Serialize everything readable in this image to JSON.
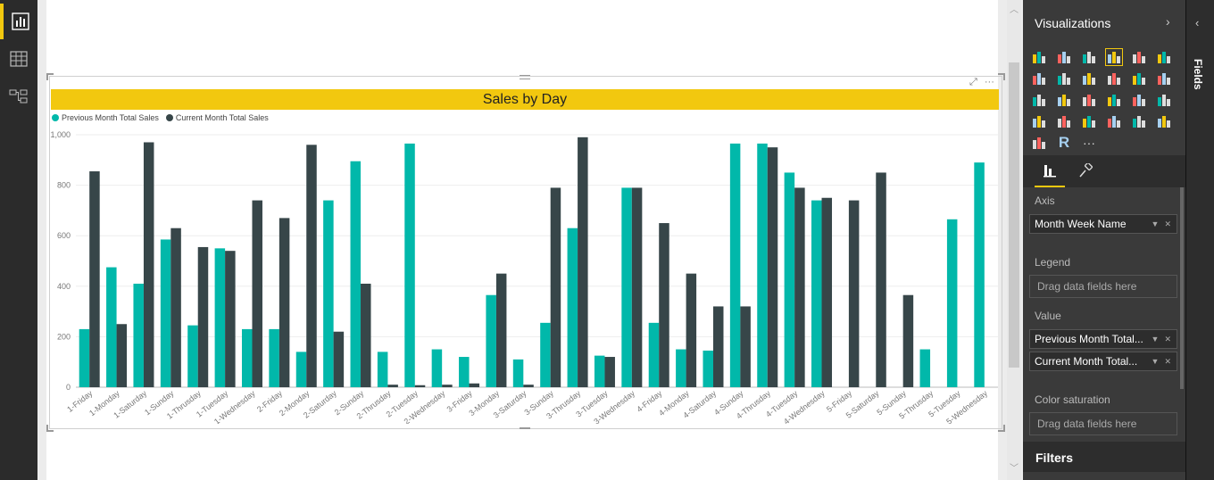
{
  "nav": {
    "items": [
      {
        "name": "report-view-icon",
        "active": true
      },
      {
        "name": "data-view-icon",
        "active": false
      },
      {
        "name": "relationships-view-icon",
        "active": false
      }
    ]
  },
  "visual": {
    "title": "Sales by Day",
    "focus_glyph": "⤢",
    "more_glyph": "···"
  },
  "chart_data": {
    "type": "bar",
    "title": "Sales by Day",
    "xlabel": "",
    "ylabel": "",
    "ylim": [
      0,
      1000
    ],
    "yticks": [
      0,
      200,
      400,
      600,
      800,
      1000
    ],
    "ytick_labels": [
      "0",
      "200",
      "400",
      "600",
      "800",
      "1,000"
    ],
    "grid": true,
    "legend_position": "top-left",
    "categories": [
      "1-Friday",
      "1-Monday",
      "1-Saturday",
      "1-Sunday",
      "1-Thrusday",
      "1-Tuesday",
      "1-Wednesday",
      "2-Friday",
      "2-Monday",
      "2-Saturday",
      "2-Sunday",
      "2-Thrusday",
      "2-Tuesday",
      "2-Wednesday",
      "3-Friday",
      "3-Monday",
      "3-Saturday",
      "3-Sunday",
      "3-Thrusday",
      "3-Tuesday",
      "3-Wednesday",
      "4-Friday",
      "4-Monday",
      "4-Saturday",
      "4-Sunday",
      "4-Thrusday",
      "4-Tuesday",
      "4-Wednesday",
      "5-Friday",
      "5-Saturday",
      "5-Sunday",
      "5-Thrusday",
      "5-Tuesday",
      "5-Wednesday"
    ],
    "series": [
      {
        "name": "Previous Month Total Sales",
        "color": "#01b8aa",
        "values": [
          230,
          475,
          410,
          585,
          245,
          550,
          230,
          230,
          140,
          740,
          895,
          140,
          965,
          150,
          120,
          365,
          110,
          255,
          630,
          125,
          790,
          255,
          150,
          145,
          965,
          965,
          850,
          740,
          0,
          0,
          0,
          150,
          665,
          890
        ]
      },
      {
        "name": "Current Month Total Sales",
        "color": "#374649",
        "values": [
          855,
          250,
          970,
          630,
          555,
          540,
          740,
          670,
          960,
          220,
          410,
          10,
          8,
          10,
          15,
          450,
          10,
          790,
          990,
          120,
          790,
          650,
          450,
          320,
          320,
          950,
          790,
          750,
          740,
          850,
          365,
          0,
          0,
          0
        ]
      }
    ]
  },
  "pane": {
    "title": "Visualizations",
    "expand_glyph": "›",
    "more_visuals": "···",
    "wells": {
      "axis_label": "Axis",
      "axis_field": "Month Week Name",
      "legend_label": "Legend",
      "legend_placeholder": "Drag data fields here",
      "value_label": "Value",
      "value_fields": [
        "Previous Month Total...",
        "Current Month Total..."
      ],
      "saturation_label": "Color saturation",
      "saturation_placeholder": "Drag data fields here"
    },
    "pill_dropdown_glyph": "▼",
    "pill_remove_glyph": "✕",
    "filters_title": "Filters"
  },
  "fields_rail": {
    "label": "Fields",
    "collapse_glyph": "‹"
  },
  "colors": {
    "accent": "#f2c80f",
    "series1": "#01b8aa",
    "series2": "#374649"
  }
}
